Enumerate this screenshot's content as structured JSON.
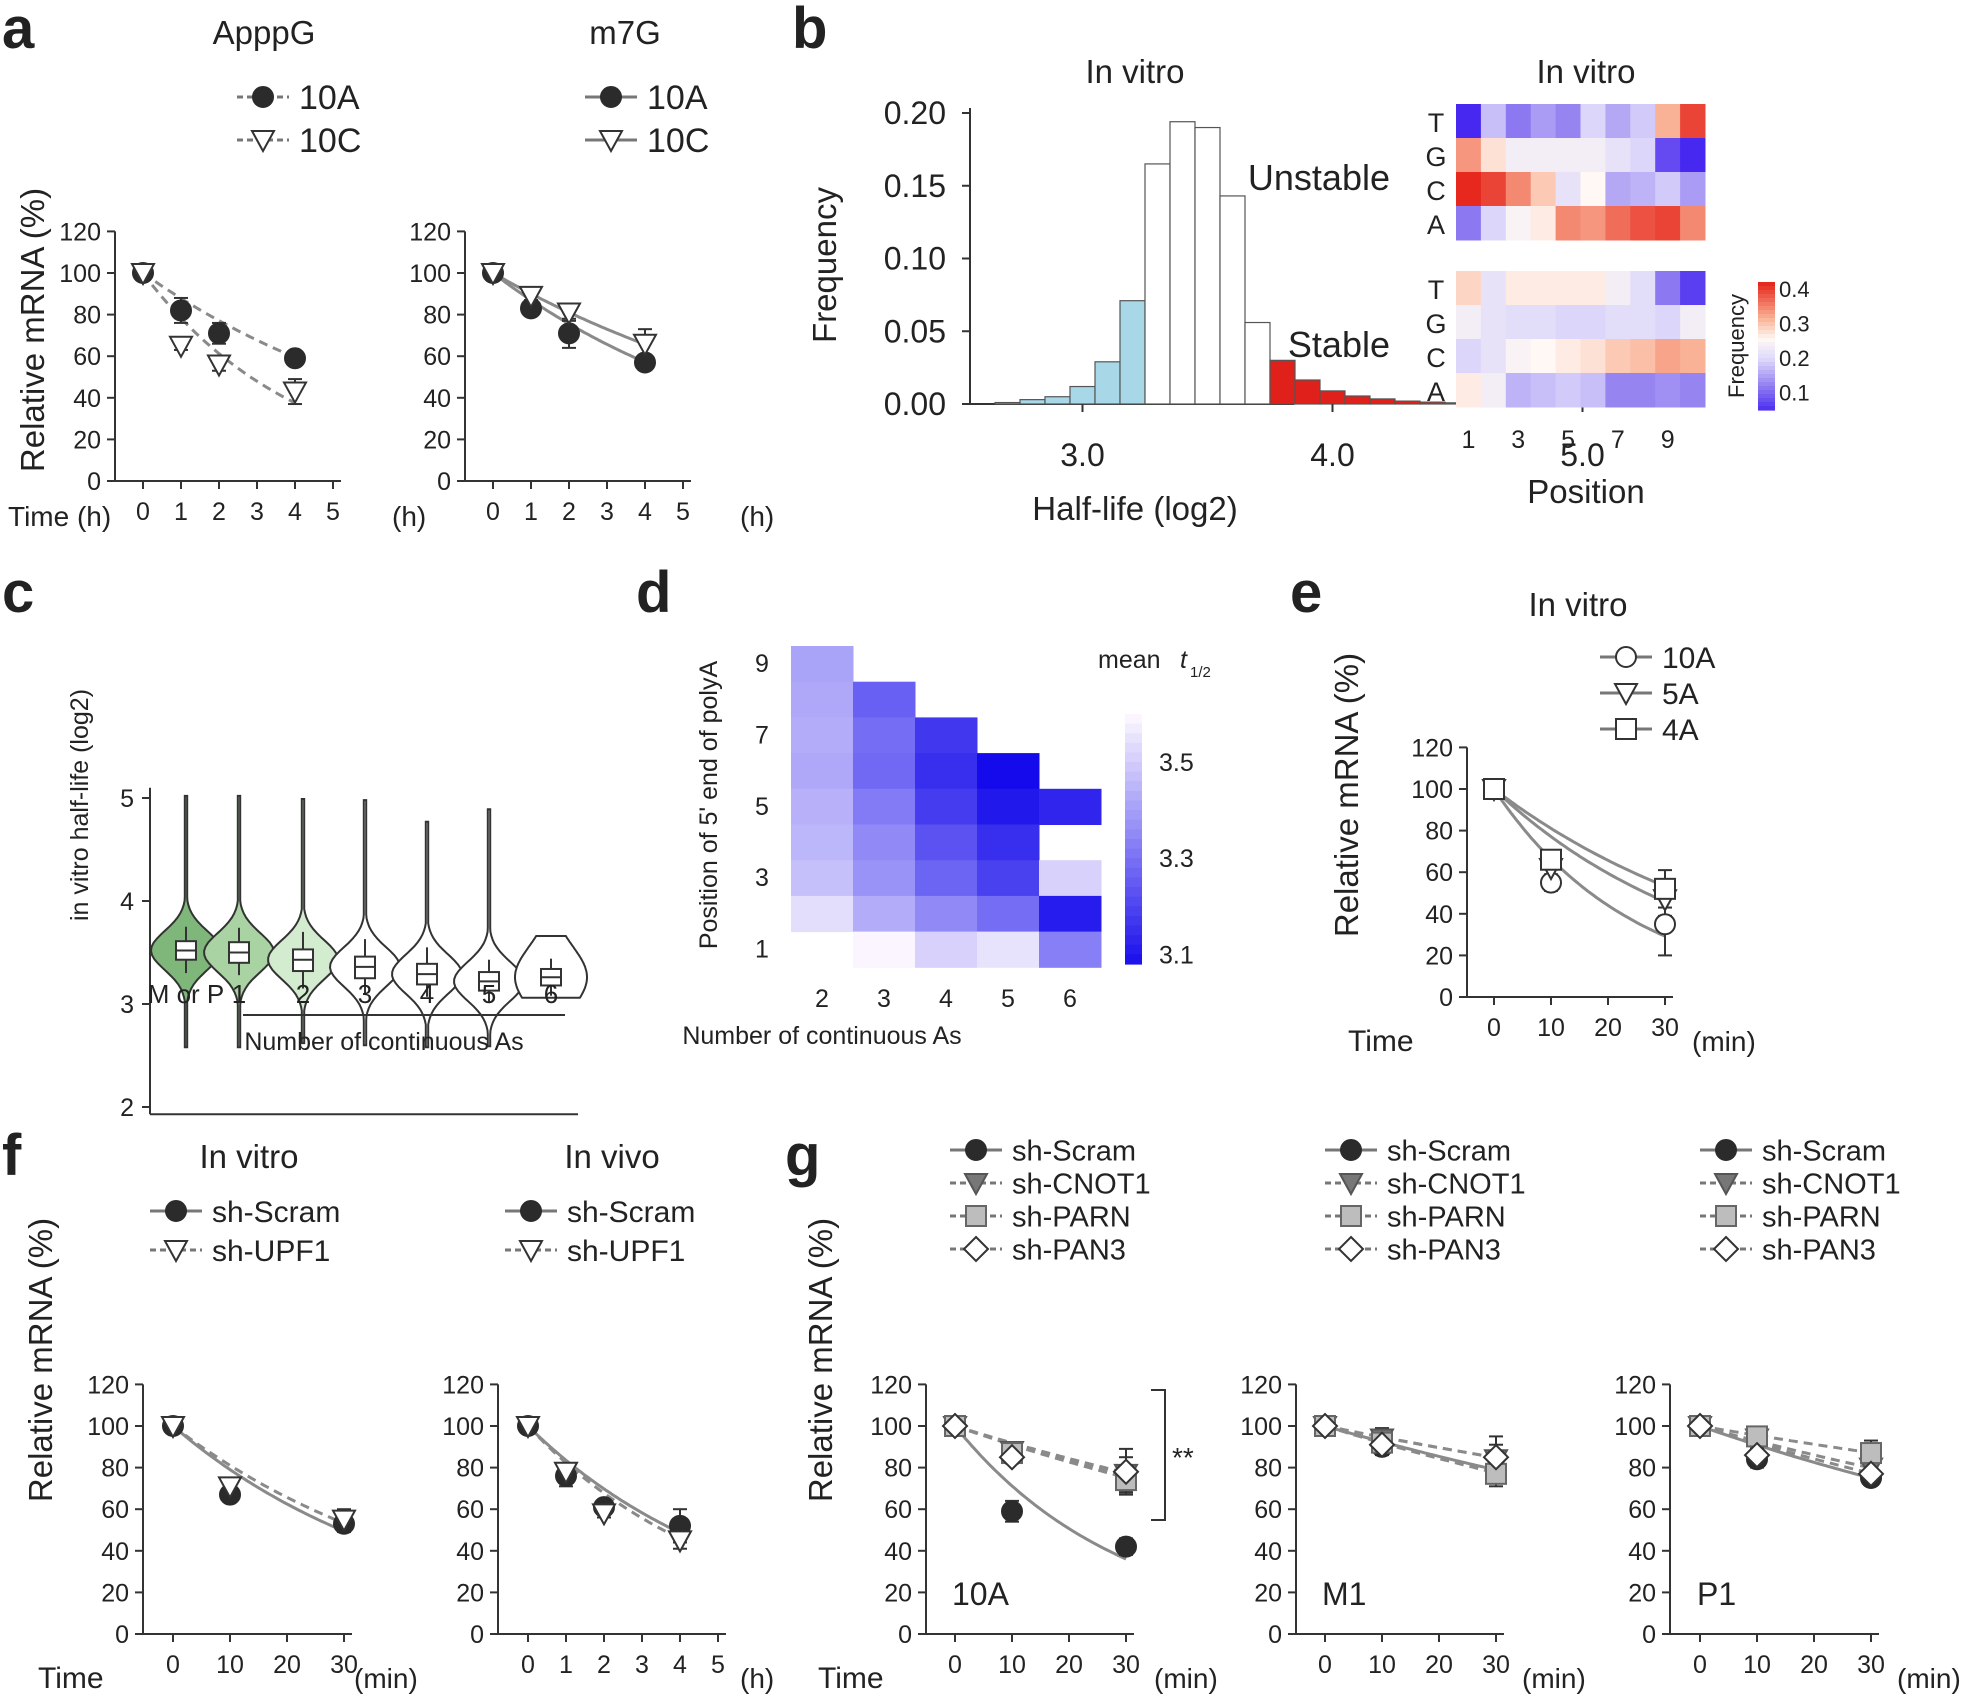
{
  "figure": {
    "panel_letters": [
      "a",
      "b",
      "c",
      "d",
      "e",
      "f",
      "g"
    ],
    "time_axis_label": "Time",
    "time_axis_label_h": "Time (h)",
    "relative_mrna_label": "Relative mRNA (%)",
    "unit_h": "(h)",
    "unit_min": "(min)",
    "significance": "**"
  },
  "colors": {
    "curve": "#8a8a8a",
    "marker_dark": "#2b2b2b",
    "hist_white": "#ffffff",
    "hist_blue": "#a8d8e8",
    "hist_red": "#e0201a",
    "unstable_text": "#29a6d6",
    "stable_text": "#d8262a",
    "violin_green_dark": "#7fb77a",
    "violin_green_mid": "#a9d3a3",
    "violin_green_light": "#d3ebcf"
  },
  "chart_data": [
    {
      "id": "a1",
      "type": "line",
      "title": "ApppG",
      "ylabel": "Relative mRNA (%)",
      "xlabel": "Time (h)",
      "xticks": [
        0,
        1,
        2,
        3,
        4,
        5
      ],
      "yticks": [
        0,
        20,
        40,
        60,
        80,
        100,
        120
      ],
      "ylim": [
        0,
        120
      ],
      "series": [
        {
          "name": "10A",
          "marker": "filled-circle",
          "line": "dashed",
          "x": [
            0,
            1,
            2,
            4
          ],
          "y": [
            100,
            82,
            71,
            59
          ],
          "err": [
            0,
            6,
            5,
            2
          ],
          "fit_k": 0.13
        },
        {
          "name": "10C",
          "marker": "open-triangle",
          "line": "dashed",
          "x": [
            0,
            1,
            2,
            4
          ],
          "y": [
            100,
            65,
            56,
            43
          ],
          "err": [
            0,
            2,
            3,
            6
          ],
          "fit_k": 0.245
        }
      ]
    },
    {
      "id": "a2",
      "type": "line",
      "title": "m7G",
      "xticks": [
        0,
        1,
        2,
        3,
        4,
        5
      ],
      "yticks": [
        0,
        20,
        40,
        60,
        80,
        100,
        120
      ],
      "ylim": [
        0,
        120
      ],
      "series": [
        {
          "name": "10A",
          "marker": "filled-circle",
          "line": "solid",
          "x": [
            0,
            1,
            2,
            4
          ],
          "y": [
            100,
            83,
            71,
            57
          ],
          "err": [
            0,
            3,
            7,
            3
          ],
          "fit_k": 0.14
        },
        {
          "name": "10C",
          "marker": "open-triangle",
          "line": "solid",
          "x": [
            0,
            1,
            2,
            4
          ],
          "y": [
            100,
            89,
            81,
            66
          ],
          "err": [
            0,
            2,
            4,
            7
          ],
          "fit_k": 0.105
        }
      ]
    },
    {
      "id": "b_hist",
      "type": "bar",
      "title": "In vitro",
      "xlabel": "Half-life (log2)",
      "ylabel": "Frequency",
      "xticks": [
        "3.0",
        "4.0",
        "5.0"
      ],
      "yticks": [
        "0.00",
        "0.05",
        "0.10",
        "0.15",
        "0.20"
      ],
      "xlim": [
        2.55,
        5.05
      ],
      "ylim": [
        0,
        0.2
      ],
      "bin_start": 2.65,
      "bin_width": 0.1,
      "values": [
        0.001,
        0.003,
        0.005,
        0.012,
        0.029,
        0.071,
        0.165,
        0.194,
        0.19,
        0.143,
        0.056,
        0.03,
        0.0165,
        0.009,
        0.0055,
        0.0035,
        0.002,
        0.0013,
        0.0008,
        0.0005
      ],
      "colors_by_bin": [
        "blue",
        "blue",
        "blue",
        "blue",
        "blue",
        "blue",
        "white",
        "white",
        "white",
        "white",
        "white",
        "red",
        "red",
        "red",
        "red",
        "red",
        "red",
        "red",
        "red",
        "red"
      ]
    },
    {
      "id": "b_heat",
      "type": "heatmap",
      "title": "In vitro",
      "xlabel": "Position",
      "xticks": [
        "1",
        "3",
        "5",
        "7",
        "9"
      ],
      "rows": [
        "T",
        "G",
        "C",
        "A"
      ],
      "groups": [
        {
          "name": "Unstable",
          "values": [
            [
              0.05,
              0.18,
              0.12,
              0.15,
              0.13,
              0.2,
              0.16,
              0.19,
              0.32,
              0.4
            ],
            [
              0.34,
              0.28,
              0.24,
              0.24,
              0.24,
              0.24,
              0.22,
              0.2,
              0.08,
              0.04
            ],
            [
              0.42,
              0.4,
              0.35,
              0.3,
              0.22,
              0.26,
              0.16,
              0.17,
              0.19,
              0.15
            ],
            [
              0.12,
              0.2,
              0.25,
              0.27,
              0.35,
              0.34,
              0.37,
              0.39,
              0.4,
              0.35
            ]
          ]
        },
        {
          "name": "Stable",
          "values": [
            [
              0.29,
              0.22,
              0.27,
              0.27,
              0.27,
              0.27,
              0.24,
              0.21,
              0.12,
              0.07
            ],
            [
              0.24,
              0.22,
              0.21,
              0.21,
              0.2,
              0.2,
              0.21,
              0.21,
              0.2,
              0.24
            ],
            [
              0.2,
              0.22,
              0.25,
              0.26,
              0.27,
              0.28,
              0.3,
              0.31,
              0.33,
              0.32
            ],
            [
              0.27,
              0.24,
              0.17,
              0.18,
              0.19,
              0.18,
              0.13,
              0.13,
              0.14,
              0.13
            ]
          ]
        }
      ],
      "colorbar": {
        "label": "Frequency",
        "ticks": [
          "0.4",
          "0.3",
          "0.2",
          "0.1"
        ],
        "range": [
          0.05,
          0.42
        ]
      }
    },
    {
      "id": "c",
      "type": "violin",
      "ylabel": "in vitro half-life (log2)",
      "xlabel": "Number of continuous As",
      "categories": [
        "M or P",
        "1",
        "2",
        "3",
        "4",
        "5",
        "6"
      ],
      "yticks": [
        2,
        3,
        4,
        5
      ],
      "ylim": [
        1.9,
        5.2
      ],
      "median": [
        3.52,
        3.5,
        3.43,
        3.36,
        3.29,
        3.22,
        3.26
      ],
      "q1": [
        3.43,
        3.4,
        3.32,
        3.25,
        3.19,
        3.13,
        3.18
      ],
      "q3": [
        3.61,
        3.6,
        3.53,
        3.46,
        3.39,
        3.31,
        3.34
      ],
      "wlo": [
        3.3,
        3.28,
        3.15,
        3.1,
        3.07,
        3.02,
        3.08
      ],
      "whi": [
        3.75,
        3.74,
        3.7,
        3.63,
        3.55,
        3.43,
        3.44
      ],
      "ymin": [
        2.58,
        2.58,
        2.62,
        2.6,
        2.58,
        2.59,
        3.06
      ],
      "ymax": [
        5.02,
        5.02,
        4.99,
        4.98,
        4.77,
        4.89,
        3.66
      ],
      "fill": [
        "dark",
        "mid",
        "light",
        "none",
        "none",
        "none",
        "none"
      ]
    },
    {
      "id": "d",
      "type": "heatmap",
      "xlabel": "Number of continuous As",
      "ylabel": "Position of 5' end of polyA",
      "xticks": [
        "2",
        "3",
        "4",
        "5",
        "6"
      ],
      "yticks": [
        "9",
        "7",
        "5",
        "3",
        "1"
      ],
      "colorbar": {
        "title": "mean",
        "title_italic": "t",
        "title_sub": "1/2",
        "ticks": [
          "3.5",
          "3.3",
          "3.1"
        ],
        "range": [
          3.08,
          3.6
        ]
      },
      "grid": [
        [
          3.42,
          null,
          null,
          null,
          null
        ],
        [
          3.43,
          3.27,
          null,
          null,
          null
        ],
        [
          3.44,
          3.3,
          3.18,
          null,
          null
        ],
        [
          3.43,
          3.29,
          3.16,
          3.08,
          null
        ],
        [
          3.45,
          3.33,
          3.19,
          3.11,
          3.14
        ],
        [
          3.46,
          3.36,
          3.24,
          3.16,
          null
        ],
        [
          3.48,
          3.38,
          3.28,
          3.2,
          3.52
        ],
        [
          3.55,
          3.44,
          3.36,
          3.3,
          3.12
        ],
        [
          null,
          3.62,
          3.52,
          3.56,
          3.34
        ]
      ]
    },
    {
      "id": "e",
      "type": "line",
      "title": "In vitro",
      "ylabel": "Relative mRNA (%)",
      "xticks": [
        0,
        10,
        20,
        30
      ],
      "yticks": [
        0,
        20,
        40,
        60,
        80,
        100,
        120
      ],
      "ylim": [
        0,
        120
      ],
      "series": [
        {
          "name": "10A",
          "marker": "open-circle",
          "line": "solid",
          "x": [
            0,
            10,
            30
          ],
          "y": [
            100,
            55,
            35
          ],
          "err": [
            0,
            4,
            15
          ],
          "fit_k": 0.041
        },
        {
          "name": "5A",
          "marker": "open-triangle",
          "line": "solid",
          "x": [
            0,
            10,
            30
          ],
          "y": [
            100,
            62,
            47
          ],
          "err": [
            0,
            4,
            8
          ],
          "fit_k": 0.026
        },
        {
          "name": "4A",
          "marker": "open-square",
          "line": "solid",
          "x": [
            0,
            10,
            30
          ],
          "y": [
            100,
            66,
            52
          ],
          "err": [
            0,
            3,
            9
          ],
          "fit_k": 0.021
        }
      ]
    },
    {
      "id": "f1",
      "type": "line",
      "title": "In vitro",
      "ylabel": "Relative mRNA (%)",
      "xticks": [
        0,
        10,
        20,
        30
      ],
      "yticks": [
        0,
        20,
        40,
        60,
        80,
        100,
        120
      ],
      "ylim": [
        0,
        120
      ],
      "series": [
        {
          "name": "sh-Scram",
          "marker": "filled-circle",
          "line": "solid",
          "x": [
            0,
            10,
            30
          ],
          "y": [
            100,
            67,
            53
          ],
          "err": [
            0,
            3,
            4
          ],
          "fit_k": 0.0235
        },
        {
          "name": "sh-UPF1",
          "marker": "open-triangle",
          "line": "dashed",
          "x": [
            0,
            10,
            30
          ],
          "y": [
            100,
            71,
            55
          ],
          "err": [
            0,
            2,
            5
          ],
          "fit_k": 0.021
        }
      ]
    },
    {
      "id": "f2",
      "type": "line",
      "title": "In vivo",
      "xticks": [
        0,
        1,
        2,
        3,
        4,
        5
      ],
      "yticks": [
        0,
        20,
        40,
        60,
        80,
        100,
        120
      ],
      "ylim": [
        0,
        120
      ],
      "series": [
        {
          "name": "sh-Scram",
          "marker": "filled-circle",
          "line": "solid",
          "x": [
            0,
            1,
            2,
            4
          ],
          "y": [
            100,
            76,
            61,
            52
          ],
          "err": [
            0,
            5,
            3,
            8
          ],
          "fit_k": 0.18
        },
        {
          "name": "sh-UPF1",
          "marker": "open-triangle",
          "line": "dashed",
          "x": [
            0,
            1,
            2,
            4
          ],
          "y": [
            100,
            78,
            58,
            45
          ],
          "err": [
            0,
            3,
            2,
            4
          ],
          "fit_k": 0.195
        }
      ]
    },
    {
      "id": "g1",
      "type": "line",
      "label": "10A",
      "ylabel": "Relative mRNA (%)",
      "xticks": [
        0,
        10,
        20,
        30
      ],
      "yticks": [
        0,
        20,
        40,
        60,
        80,
        100,
        120
      ],
      "ylim": [
        0,
        120
      ],
      "series": [
        {
          "name": "sh-Scram",
          "marker": "filled-circle",
          "line": "solid",
          "x": [
            0,
            10,
            30
          ],
          "y": [
            100,
            59,
            42
          ],
          "err": [
            0,
            5,
            4
          ],
          "fit_k": 0.034
        },
        {
          "name": "sh-CNOT1",
          "marker": "gray-triangle",
          "line": "dashed",
          "x": [
            0,
            10,
            30
          ],
          "y": [
            100,
            88,
            77
          ],
          "err": [
            0,
            3,
            8
          ],
          "fit_k": 0.0088
        },
        {
          "name": "sh-PARN",
          "marker": "gray-square",
          "line": "dashed",
          "x": [
            0,
            10,
            30
          ],
          "y": [
            100,
            87,
            74
          ],
          "err": [
            0,
            3,
            6
          ],
          "fit_k": 0.0095
        },
        {
          "name": "sh-PAN3",
          "marker": "open-diamond",
          "line": "dashed",
          "x": [
            0,
            10,
            30
          ],
          "y": [
            100,
            85,
            78
          ],
          "err": [
            0,
            3,
            11
          ],
          "fit_k": 0.0085
        }
      ]
    },
    {
      "id": "g2",
      "type": "line",
      "label": "M1",
      "xticks": [
        0,
        10,
        20,
        30
      ],
      "yticks": [
        0,
        20,
        40,
        60,
        80,
        100,
        120
      ],
      "ylim": [
        0,
        120
      ],
      "series": [
        {
          "name": "sh-Scram",
          "marker": "filled-circle",
          "line": "solid",
          "x": [
            0,
            10,
            30
          ],
          "y": [
            100,
            90,
            79
          ],
          "err": [
            0,
            4,
            5
          ],
          "fit_k": 0.0079
        },
        {
          "name": "sh-CNOT1",
          "marker": "gray-triangle",
          "line": "dashed",
          "x": [
            0,
            10,
            30
          ],
          "y": [
            100,
            94,
            84
          ],
          "err": [
            0,
            5,
            7
          ],
          "fit_k": 0.0055
        },
        {
          "name": "sh-PARN",
          "marker": "gray-square",
          "line": "dashed",
          "x": [
            0,
            10,
            30
          ],
          "y": [
            100,
            92,
            77
          ],
          "err": [
            0,
            3,
            6
          ],
          "fit_k": 0.0085
        },
        {
          "name": "sh-PAN3",
          "marker": "open-diamond",
          "line": "dashed",
          "x": [
            0,
            10,
            30
          ],
          "y": [
            100,
            91,
            85
          ],
          "err": [
            0,
            3,
            10
          ],
          "fit_k": 0.0055
        }
      ]
    },
    {
      "id": "g3",
      "type": "line",
      "label": "P1",
      "xticks": [
        0,
        10,
        20,
        30
      ],
      "yticks": [
        0,
        20,
        40,
        60,
        80,
        100,
        120
      ],
      "ylim": [
        0,
        120
      ],
      "series": [
        {
          "name": "sh-Scram",
          "marker": "filled-circle",
          "line": "solid",
          "x": [
            0,
            10,
            30
          ],
          "y": [
            100,
            84,
            75
          ],
          "err": [
            0,
            4,
            3
          ],
          "fit_k": 0.0096
        },
        {
          "name": "sh-CNOT1",
          "marker": "gray-triangle",
          "line": "dashed",
          "x": [
            0,
            10,
            30
          ],
          "y": [
            100,
            94,
            80
          ],
          "err": [
            0,
            4,
            6
          ],
          "fit_k": 0.0075
        },
        {
          "name": "sh-PARN",
          "marker": "gray-square",
          "line": "dashed",
          "x": [
            0,
            10,
            30
          ],
          "y": [
            100,
            95,
            87
          ],
          "err": [
            0,
            3,
            6
          ],
          "fit_k": 0.0046
        },
        {
          "name": "sh-PAN3",
          "marker": "open-diamond",
          "line": "dashed",
          "x": [
            0,
            10,
            30
          ],
          "y": [
            100,
            86,
            77
          ],
          "err": [
            0,
            3,
            4
          ],
          "fit_k": 0.0086
        }
      ]
    }
  ]
}
